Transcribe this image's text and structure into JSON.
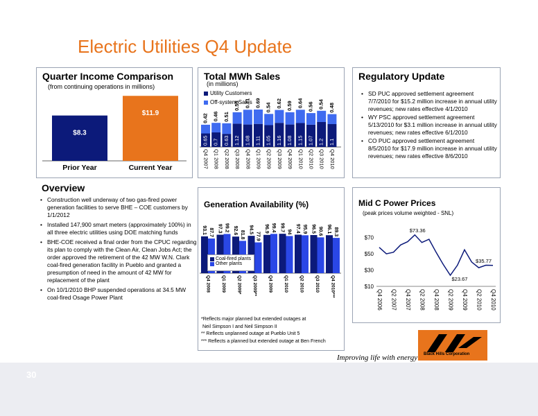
{
  "page": {
    "title": "Electric Utilities Q4 Update",
    "page_number": "30"
  },
  "quarter": {
    "title": "Quarter Income Comparison",
    "subtitle": "(from continuing operations in millions)",
    "bars": [
      {
        "label": "Prior Year",
        "value": 8.3,
        "text": "$8.3",
        "color": "#0c1a7a"
      },
      {
        "label": "Current Year",
        "value": 11.9,
        "text": "$11.9",
        "color": "#e8741c"
      }
    ]
  },
  "overview": {
    "title": "Overview",
    "bullets": [
      "Construction well underway of two gas-fired power generation facilities to serve BHE – COE customers by 1/1/2012",
      "Installed 147,900 smart meters (approximately 100%) in all three electric utilities using DOE matching funds",
      "BHE-COE received a final order from the CPUC regarding its plan to comply with the Clean Air, Clean Jobs Act; the order approved the retirement of the 42 MW W.N. Clark coal-fired generation facility in Pueblo and granted a presumption of need in the amount of 42 MW for replacement of the plant",
      "On 10/1/2010 BHP suspended operations at 34.5 MW coal-fired Osage Power Plant"
    ]
  },
  "mwh": {
    "title": "Total MWh Sales",
    "subtitle": "(in millions)",
    "legend": [
      "Utility Customers",
      "Off-system Sales"
    ],
    "colors": {
      "utility": "#0c1a7a",
      "offsystem": "#3f6bf0"
    }
  },
  "generation": {
    "title": "Generation Availability (%)",
    "legend": [
      "Coal-fired plants",
      "Other plants"
    ],
    "colors": {
      "coal": "#0c1a7a",
      "other": "#2a47e6"
    },
    "footnotes": [
      "*Reflects major planned but extended outages at",
      " Neil Simpson I and Neil Simpson II",
      "** Reflects unplanned outage at Pueblo Unit 5",
      "*** Reflects a planned but extended outage at Ben French"
    ]
  },
  "regulatory": {
    "title": "Regulatory Update",
    "bullets": [
      "SD PUC approved settlement agreement 7/7/2010 for $15.2 million increase in annual utility revenues; new rates effective 4/1/2010",
      "WY PSC approved settlement agreement 5/13/2010 for $3.1 million increase in annual utility revenues; new rates effective 6/1/2010",
      "CO PUC approved settlement agreement 8/5/2010 for $17.9 million increase in annual utility revenues; new rates effective 8/6/2010"
    ]
  },
  "midc": {
    "title": "Mid C Power Prices",
    "subtitle": "(peak prices volume weighted - SNL)",
    "callouts": [
      "$73.36",
      "$23.67",
      "$35.77"
    ],
    "color": "#0c1a7a"
  },
  "logo": {
    "tagline": "Improving life with energy",
    "company": "Black Hills Corporation"
  },
  "chart_data": [
    {
      "type": "bar",
      "title": "Quarter Income Comparison",
      "categories": [
        "Prior Year",
        "Current Year"
      ],
      "values": [
        8.3,
        11.9
      ]
    },
    {
      "type": "bar",
      "title": "Total MWh Sales",
      "stacked": true,
      "categories": [
        "Q4 2007",
        "Q1 2008",
        "Q2 2008",
        "Q3 2008",
        "Q4 2008",
        "Q1 2009",
        "Q2 2009",
        "Q3 2009",
        "Q4 2009",
        "Q1 2010",
        "Q2 2010",
        "Q3 2010",
        "Q4 2010"
      ],
      "series": [
        {
          "name": "Utility Customers",
          "values": [
            0.65,
            0.7,
            0.63,
            1.12,
            1.08,
            1.11,
            1.05,
            1.16,
            1.08,
            1.15,
            1.07,
            1.2,
            1.1
          ]
        },
        {
          "name": "Off-system Sales",
          "values": [
            0.42,
            0.46,
            0.51,
            0.55,
            0.71,
            0.69,
            0.54,
            0.62,
            0.59,
            0.64,
            0.56,
            0.54,
            0.48
          ]
        }
      ]
    },
    {
      "type": "bar",
      "title": "Generation Availability (%)",
      "categories": [
        "Q4 2008",
        "Q1 2009",
        "Q2 2009*",
        "Q3 2009**",
        "Q4 2009",
        "Q1 2010",
        "Q2 2010",
        "Q3 2010",
        "Q4 2010***"
      ],
      "series": [
        {
          "name": "Coal-fired plants",
          "values": [
            93.1,
            97.3,
            92.6,
            94.5,
            96.9,
            99.7,
            97.4,
            96.5,
            96.1
          ]
        },
        {
          "name": "Other plants",
          "values": [
            87.7,
            99.2,
            81.8,
            77.9,
            99.4,
            94.0,
            95.9,
            90.6,
            89.3
          ]
        }
      ],
      "ylim": [
        0,
        100
      ]
    },
    {
      "type": "line",
      "title": "Mid C Power Prices",
      "x": [
        "Q4 2006",
        "Q1 2007",
        "Q2 2007",
        "Q3 2007",
        "Q4 2007",
        "Q1 2008",
        "Q2 2008",
        "Q3 2008",
        "Q4 2008",
        "Q1 2009",
        "Q2 2009",
        "Q3 2009",
        "Q4 2009",
        "Q1 2010",
        "Q2 2010",
        "Q3 2010",
        "Q4 2010"
      ],
      "x_tick_labels": [
        "Q4 2006",
        "Q2 2007",
        "Q4 2007",
        "Q2 2008",
        "Q4 2008",
        "Q2 2009",
        "Q4 2009",
        "Q2 2010",
        "Q4 2010"
      ],
      "values": [
        58,
        50,
        52,
        61,
        65,
        73.36,
        64,
        68,
        52,
        37,
        23.67,
        36,
        55,
        40,
        33,
        36,
        35.77
      ],
      "y_ticks": [
        "$10",
        "$30",
        "$50",
        "$70"
      ],
      "ylim": [
        10,
        80
      ]
    }
  ]
}
